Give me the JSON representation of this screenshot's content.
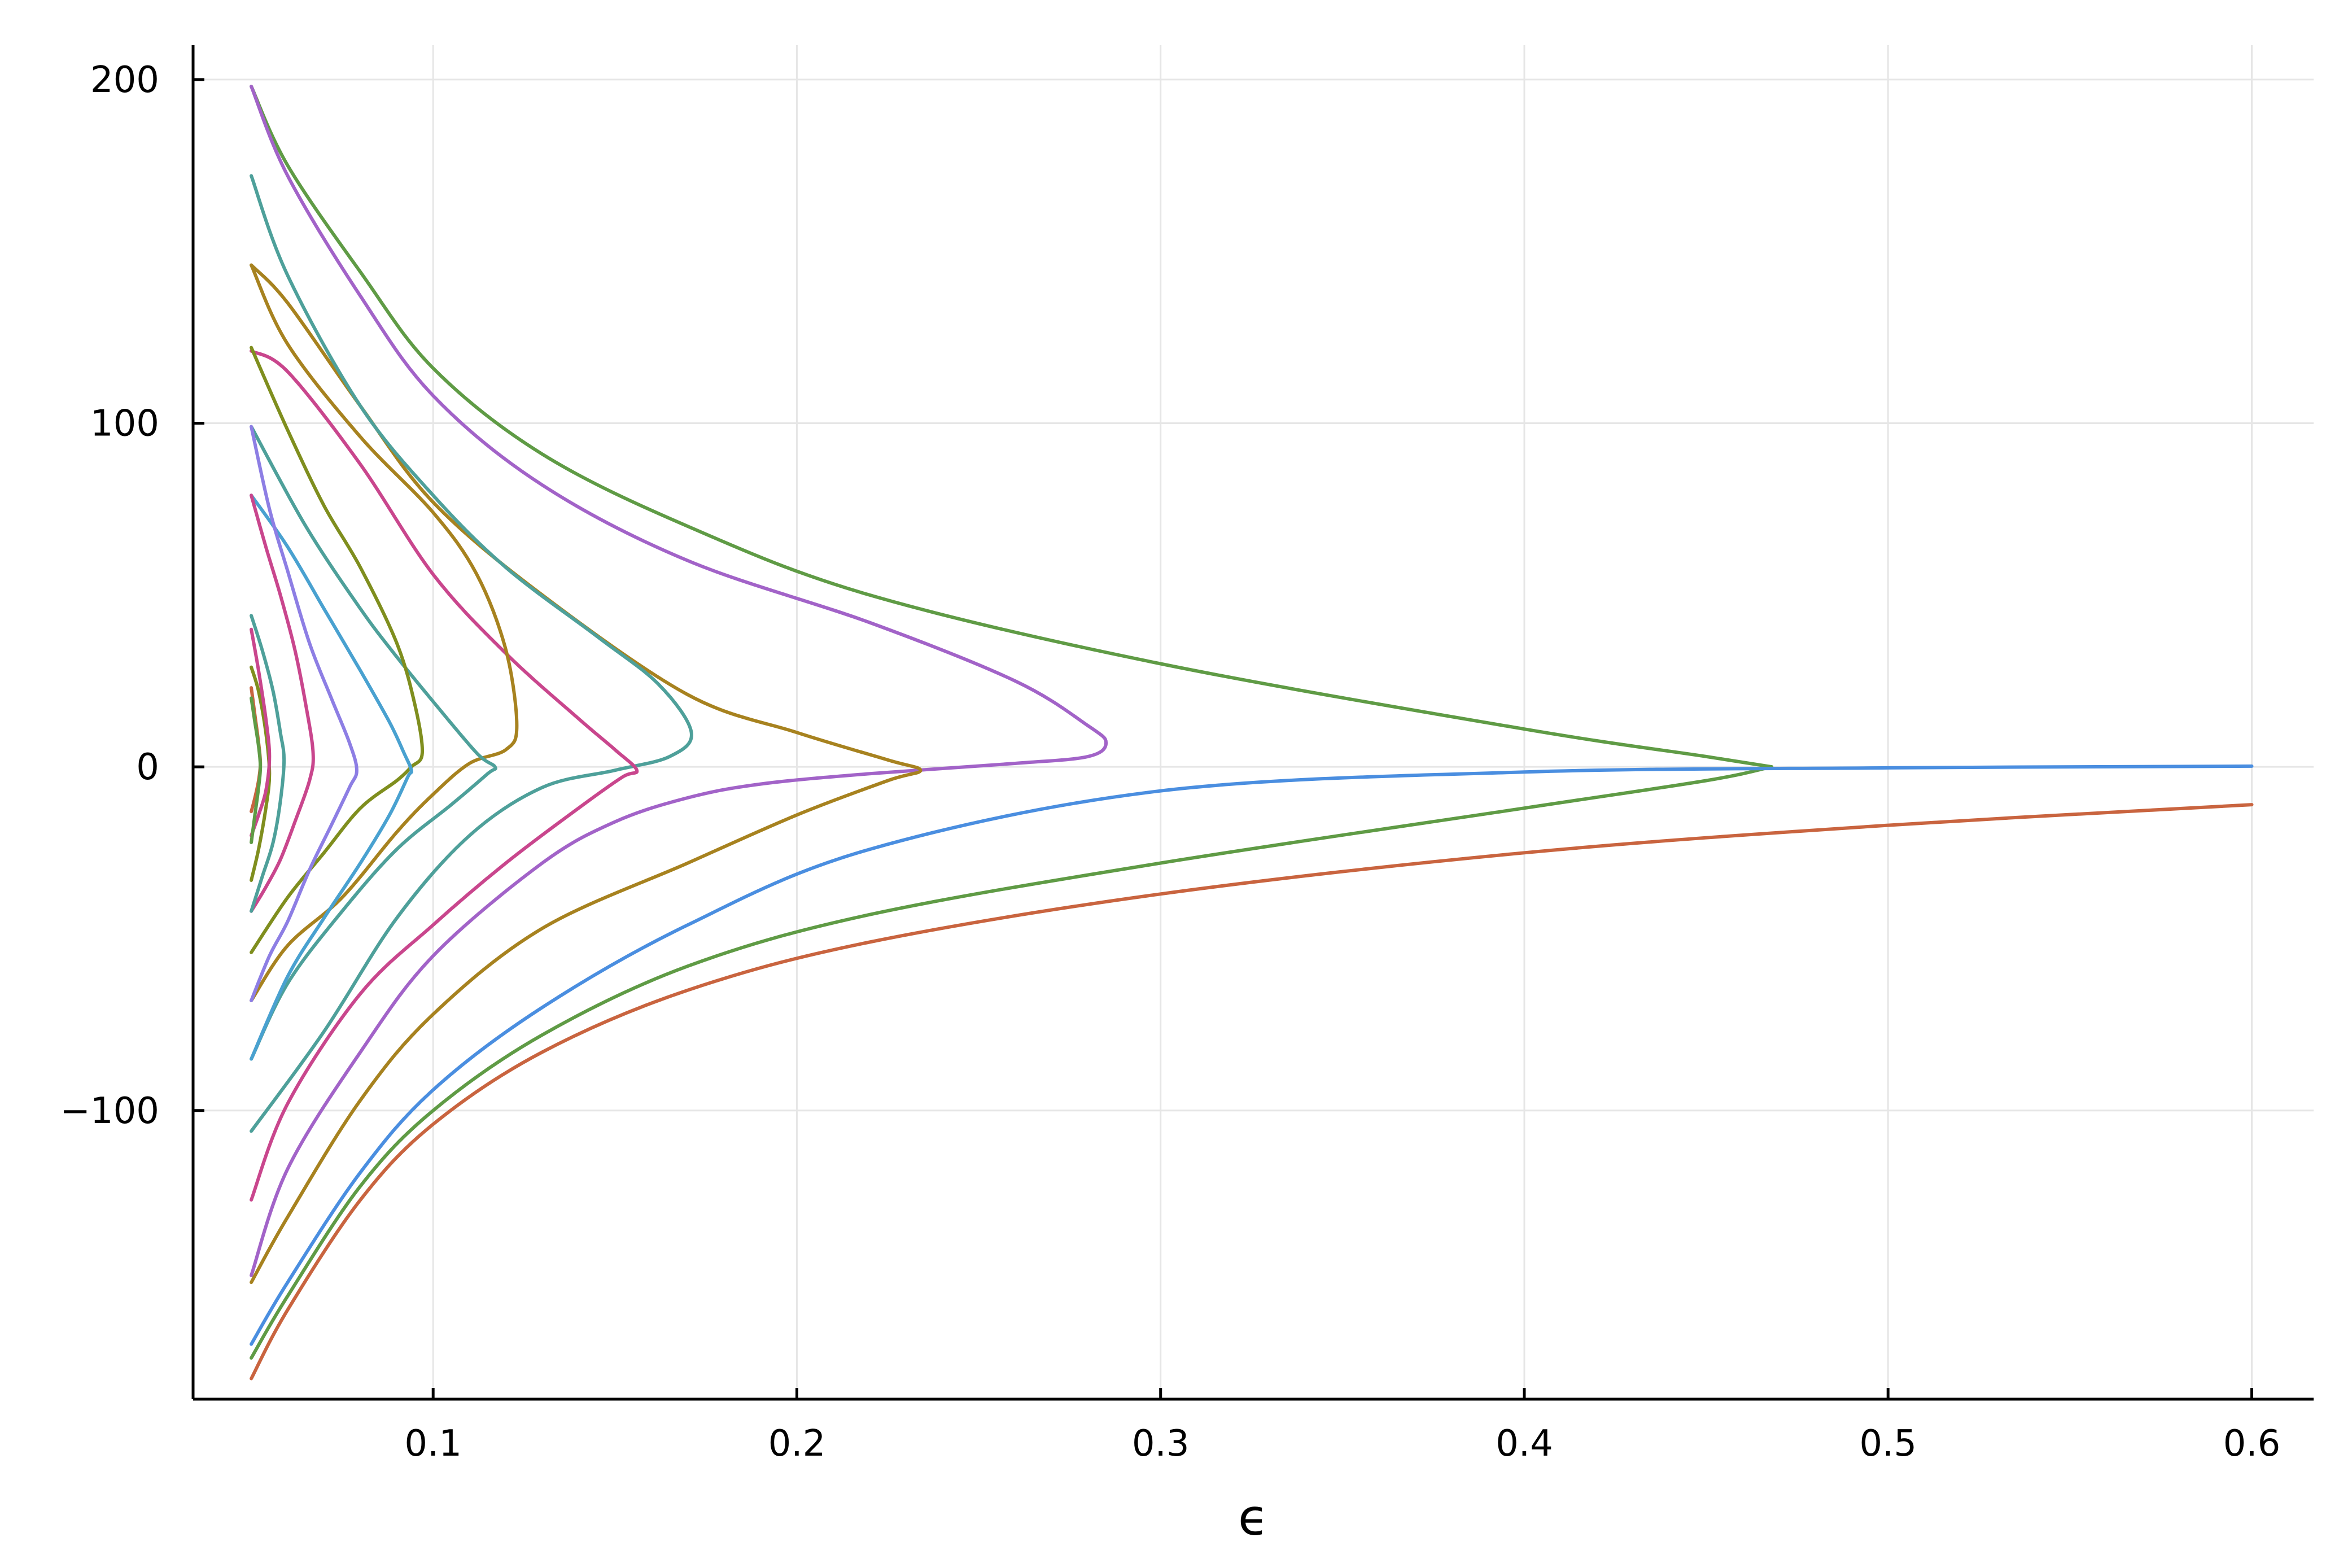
{
  "chart_data": {
    "type": "line",
    "title": "",
    "xlabel": "ϵ",
    "ylabel": "",
    "xlim": [
      0.034,
      0.617
    ],
    "ylim": [
      -184,
      210
    ],
    "grid": true,
    "legend": "none",
    "x_ticks": [
      {
        "value": 0.1,
        "label": "0.1"
      },
      {
        "value": 0.2,
        "label": "0.2"
      },
      {
        "value": 0.3,
        "label": "0.3"
      },
      {
        "value": 0.4,
        "label": "0.4"
      },
      {
        "value": 0.5,
        "label": "0.5"
      },
      {
        "value": 0.6,
        "label": "0.6"
      }
    ],
    "y_ticks": [
      {
        "value": 200,
        "label": "200"
      },
      {
        "value": 100,
        "label": "100"
      },
      {
        "value": 0,
        "label": "0"
      },
      {
        "value": -100,
        "label": "−100"
      }
    ],
    "series": [
      {
        "color": "#c9643f",
        "points": [
          [
            0.05,
            -178
          ],
          [
            0.06,
            -158
          ],
          [
            0.08,
            -126
          ],
          [
            0.1,
            -104
          ],
          [
            0.13,
            -83
          ],
          [
            0.17,
            -65
          ],
          [
            0.22,
            -51
          ],
          [
            0.3,
            -37
          ],
          [
            0.4,
            -25
          ],
          [
            0.5,
            -17
          ],
          [
            0.6,
            -11
          ]
        ]
      },
      {
        "color": "#5f9b45",
        "points": [
          [
            0.05,
            -172
          ],
          [
            0.06,
            -154
          ],
          [
            0.08,
            -122
          ],
          [
            0.1,
            -100
          ],
          [
            0.13,
            -78
          ],
          [
            0.17,
            -58
          ],
          [
            0.22,
            -43
          ],
          [
            0.3,
            -28
          ],
          [
            0.4,
            -12
          ],
          [
            0.45,
            -4
          ],
          [
            0.468,
            0
          ]
        ]
      },
      {
        "color": "#5f9b45",
        "points": [
          [
            0.05,
            198
          ],
          [
            0.06,
            175
          ],
          [
            0.08,
            144
          ],
          [
            0.1,
            116
          ],
          [
            0.13,
            91
          ],
          [
            0.17,
            70
          ],
          [
            0.22,
            50
          ],
          [
            0.3,
            30
          ],
          [
            0.4,
            11
          ],
          [
            0.45,
            3
          ],
          [
            0.468,
            0
          ]
        ]
      },
      {
        "color": "#4a8ee0",
        "points": [
          [
            0.05,
            -168
          ],
          [
            0.06,
            -150
          ],
          [
            0.08,
            -118
          ],
          [
            0.1,
            -94
          ],
          [
            0.13,
            -70
          ],
          [
            0.17,
            -46
          ],
          [
            0.22,
            -24
          ],
          [
            0.3,
            -7
          ],
          [
            0.4,
            -1.5
          ],
          [
            0.5,
            -0.3
          ],
          [
            0.6,
            0.2
          ]
        ]
      },
      {
        "color": "#a263c8",
        "points": [
          [
            0.05,
            198
          ],
          [
            0.06,
            172
          ],
          [
            0.08,
            137
          ],
          [
            0.1,
            108
          ],
          [
            0.13,
            82
          ],
          [
            0.17,
            60
          ],
          [
            0.22,
            42
          ],
          [
            0.26,
            25
          ],
          [
            0.28,
            12
          ],
          [
            0.285,
            7
          ],
          [
            0.28,
            3
          ],
          [
            0.26,
            1
          ],
          [
            0.22,
            -2
          ],
          [
            0.19,
            -5
          ],
          [
            0.17,
            -9
          ],
          [
            0.15,
            -16
          ],
          [
            0.13,
            -28
          ],
          [
            0.1,
            -55
          ],
          [
            0.08,
            -83
          ],
          [
            0.06,
            -117
          ],
          [
            0.05,
            -148
          ]
        ]
      },
      {
        "color": "#a7821f",
        "points": [
          [
            0.05,
            -150
          ],
          [
            0.06,
            -131
          ],
          [
            0.08,
            -97
          ],
          [
            0.1,
            -72
          ],
          [
            0.13,
            -47
          ],
          [
            0.17,
            -28
          ],
          [
            0.2,
            -14
          ],
          [
            0.225,
            -4
          ],
          [
            0.234,
            -1
          ],
          [
            0.225,
            2
          ],
          [
            0.2,
            10
          ],
          [
            0.17,
            21
          ],
          [
            0.13,
            50
          ],
          [
            0.1,
            77
          ],
          [
            0.08,
            105
          ],
          [
            0.06,
            135
          ],
          [
            0.05,
            146
          ]
        ]
      },
      {
        "color": "#4ea09a",
        "points": [
          [
            0.05,
            172
          ],
          [
            0.06,
            143
          ],
          [
            0.08,
            105
          ],
          [
            0.1,
            79
          ],
          [
            0.12,
            58
          ],
          [
            0.145,
            38
          ],
          [
            0.162,
            24
          ],
          [
            0.171,
            10
          ],
          [
            0.165,
            3
          ],
          [
            0.15,
            -1
          ],
          [
            0.13,
            -6
          ],
          [
            0.11,
            -20
          ],
          [
            0.09,
            -44
          ],
          [
            0.07,
            -77
          ],
          [
            0.05,
            -106
          ]
        ]
      },
      {
        "color": "#c9468d",
        "points": [
          [
            0.05,
            -126
          ],
          [
            0.06,
            -98
          ],
          [
            0.08,
            -66
          ],
          [
            0.1,
            -46
          ],
          [
            0.12,
            -28
          ],
          [
            0.14,
            -12
          ],
          [
            0.152,
            -3
          ],
          [
            0.156,
            -1
          ],
          [
            0.15,
            5
          ],
          [
            0.14,
            14
          ],
          [
            0.12,
            33
          ],
          [
            0.1,
            56
          ],
          [
            0.08,
            88
          ],
          [
            0.06,
            115
          ],
          [
            0.05,
            121
          ]
        ]
      },
      {
        "color": "#a7821f",
        "points": [
          [
            0.05,
            146
          ],
          [
            0.06,
            123
          ],
          [
            0.08,
            96
          ],
          [
            0.1,
            74
          ],
          [
            0.112,
            56
          ],
          [
            0.12,
            34
          ],
          [
            0.123,
            12
          ],
          [
            0.12,
            5
          ],
          [
            0.11,
            1
          ],
          [
            0.1,
            -8
          ],
          [
            0.09,
            -19
          ],
          [
            0.075,
            -38
          ],
          [
            0.06,
            -52
          ],
          [
            0.05,
            -68
          ]
        ]
      },
      {
        "color": "#4ea09a",
        "points": [
          [
            0.05,
            -85
          ],
          [
            0.06,
            -63
          ],
          [
            0.075,
            -42
          ],
          [
            0.09,
            -24
          ],
          [
            0.105,
            -11
          ],
          [
            0.115,
            -2
          ],
          [
            0.117,
            0
          ],
          [
            0.112,
            4
          ],
          [
            0.1,
            19
          ],
          [
            0.09,
            32
          ],
          [
            0.08,
            46
          ],
          [
            0.065,
            70
          ],
          [
            0.05,
            99
          ]
        ]
      },
      {
        "color": "#7f8e1e",
        "points": [
          [
            0.05,
            122
          ],
          [
            0.06,
            98
          ],
          [
            0.07,
            76
          ],
          [
            0.08,
            58
          ],
          [
            0.09,
            36
          ],
          [
            0.095,
            18
          ],
          [
            0.097,
            4
          ],
          [
            0.094,
            0
          ],
          [
            0.09,
            -4
          ],
          [
            0.08,
            -12
          ],
          [
            0.07,
            -25
          ],
          [
            0.06,
            -38
          ],
          [
            0.05,
            -54
          ]
        ]
      },
      {
        "color": "#49a1d0",
        "points": [
          [
            0.05,
            -85
          ],
          [
            0.06,
            -61
          ],
          [
            0.07,
            -44
          ],
          [
            0.08,
            -28
          ],
          [
            0.088,
            -14
          ],
          [
            0.093,
            -3
          ],
          [
            0.094,
            -1
          ],
          [
            0.092,
            4
          ],
          [
            0.088,
            13
          ],
          [
            0.08,
            28
          ],
          [
            0.07,
            46
          ],
          [
            0.06,
            64
          ],
          [
            0.05,
            79
          ]
        ]
      },
      {
        "color": "#8d7ee4",
        "points": [
          [
            0.05,
            -68
          ],
          [
            0.055,
            -55
          ],
          [
            0.06,
            -45
          ],
          [
            0.066,
            -30
          ],
          [
            0.072,
            -17
          ],
          [
            0.077,
            -6
          ],
          [
            0.079,
            -1
          ],
          [
            0.077,
            7
          ],
          [
            0.072,
            20
          ],
          [
            0.066,
            36
          ],
          [
            0.06,
            57
          ],
          [
            0.055,
            75
          ],
          [
            0.05,
            99
          ]
        ]
      },
      {
        "color": "#c9468d",
        "points": [
          [
            0.05,
            79
          ],
          [
            0.054,
            64
          ],
          [
            0.058,
            50
          ],
          [
            0.062,
            34
          ],
          [
            0.065,
            18
          ],
          [
            0.067,
            4
          ],
          [
            0.066,
            -4
          ],
          [
            0.062,
            -16
          ],
          [
            0.058,
            -27
          ],
          [
            0.054,
            -35
          ],
          [
            0.05,
            -42
          ]
        ]
      },
      {
        "color": "#4ea09a",
        "points": [
          [
            0.05,
            44
          ],
          [
            0.053,
            34
          ],
          [
            0.056,
            22
          ],
          [
            0.058,
            10
          ],
          [
            0.059,
            2
          ],
          [
            0.058,
            -10
          ],
          [
            0.056,
            -22
          ],
          [
            0.053,
            -32
          ],
          [
            0.05,
            -42
          ]
        ]
      },
      {
        "color": "#7f8e1e",
        "points": [
          [
            0.05,
            -33
          ],
          [
            0.052,
            -24
          ],
          [
            0.054,
            -12
          ],
          [
            0.055,
            -2
          ],
          [
            0.054,
            10
          ],
          [
            0.052,
            22
          ],
          [
            0.05,
            29
          ]
        ]
      },
      {
        "color": "#c9468d",
        "points": [
          [
            0.05,
            40
          ],
          [
            0.052,
            28
          ],
          [
            0.054,
            14
          ],
          [
            0.055,
            3
          ],
          [
            0.054,
            -7
          ],
          [
            0.052,
            -14
          ],
          [
            0.05,
            -20
          ]
        ]
      },
      {
        "color": "#c9643f",
        "points": [
          [
            0.05,
            23
          ],
          [
            0.051,
            15
          ],
          [
            0.052,
            7
          ],
          [
            0.0525,
            1
          ],
          [
            0.052,
            -4
          ],
          [
            0.051,
            -9
          ],
          [
            0.05,
            -13
          ]
        ]
      },
      {
        "color": "#5f9b45",
        "points": [
          [
            0.05,
            -22
          ],
          [
            0.051,
            -14
          ],
          [
            0.052,
            -6
          ],
          [
            0.0525,
            0
          ],
          [
            0.052,
            6
          ],
          [
            0.051,
            13
          ],
          [
            0.05,
            20
          ]
        ]
      }
    ]
  }
}
